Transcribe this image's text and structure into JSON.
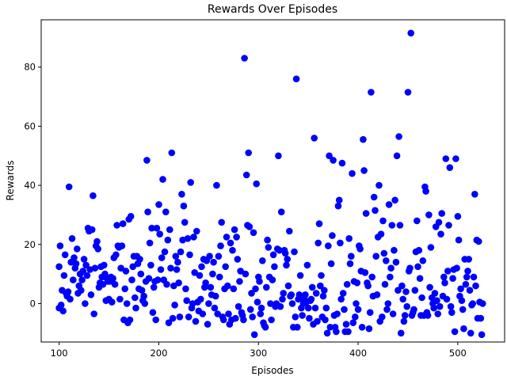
{
  "chart_data": {
    "type": "scatter",
    "title": "Rewards Over Episodes",
    "xlabel": "Episodes",
    "ylabel": "Rewards",
    "xlim": [
      82,
      547
    ],
    "ylim": [
      -13,
      96
    ],
    "xticks": [
      100,
      200,
      300,
      400,
      500
    ],
    "yticks": [
      0,
      20,
      40,
      60,
      80
    ],
    "grid": false,
    "marker_color": "#0000ff",
    "points": [
      [
        100,
        12.5
      ],
      [
        100,
        -1.5
      ],
      [
        101,
        19.5
      ],
      [
        102,
        -0.5
      ],
      [
        103,
        4.5
      ],
      [
        104,
        -2.5
      ],
      [
        105,
        9.5
      ],
      [
        106,
        16.5
      ],
      [
        107,
        3.5
      ],
      [
        108,
        2.5
      ],
      [
        109,
        4
      ],
      [
        110,
        39.5
      ],
      [
        111,
        1.5
      ],
      [
        112,
        14
      ],
      [
        113,
        22
      ],
      [
        114,
        8
      ],
      [
        115,
        15.5
      ],
      [
        116,
        12
      ],
      [
        117,
        13.5
      ],
      [
        118,
        18.5
      ],
      [
        119,
        3.5
      ],
      [
        120,
        6
      ],
      [
        121,
        10
      ],
      [
        122,
        4.5
      ],
      [
        123,
        8
      ],
      [
        124,
        11
      ],
      [
        125,
        15
      ],
      [
        126,
        0
      ],
      [
        127,
        13
      ],
      [
        128,
        9.5
      ],
      [
        129,
        25.5
      ],
      [
        130,
        24.5
      ],
      [
        131,
        11.5
      ],
      [
        132,
        3
      ],
      [
        133,
        25
      ],
      [
        134,
        36.5
      ],
      [
        135,
        -3.5
      ],
      [
        136,
        12
      ],
      [
        137,
        19.5
      ],
      [
        138,
        21
      ],
      [
        139,
        18.5
      ],
      [
        140,
        5.5
      ],
      [
        141,
        7
      ],
      [
        142,
        12.5
      ],
      [
        143,
        9
      ],
      [
        144,
        6.5
      ],
      [
        145,
        13
      ],
      [
        146,
        10
      ],
      [
        147,
        1
      ],
      [
        148,
        8.5
      ],
      [
        149,
        7.5
      ],
      [
        150,
        1.5
      ],
      [
        151,
        7.5
      ],
      [
        152,
        9
      ],
      [
        153,
        0.5
      ],
      [
        154,
        8.5
      ],
      [
        155,
        15.5
      ],
      [
        156,
        6.5
      ],
      [
        157,
        16.5
      ],
      [
        158,
        26.5
      ],
      [
        159,
        19.5
      ],
      [
        160,
        19
      ],
      [
        161,
        1.5
      ],
      [
        162,
        12
      ],
      [
        163,
        19.5
      ],
      [
        164,
        27
      ],
      [
        165,
        -5.5
      ],
      [
        166,
        5
      ],
      [
        167,
        11
      ],
      [
        168,
        0
      ],
      [
        169,
        -6.5
      ],
      [
        170,
        28.5
      ],
      [
        171,
        -5.5
      ],
      [
        172,
        29.5
      ],
      [
        173,
        8
      ],
      [
        174,
        12.5
      ],
      [
        175,
        16
      ],
      [
        176,
        2
      ],
      [
        177,
        -1.5
      ],
      [
        178,
        16
      ],
      [
        179,
        13.5
      ],
      [
        180,
        5
      ],
      [
        181,
        15
      ],
      [
        182,
        10
      ],
      [
        183,
        4.5
      ],
      [
        184,
        1
      ],
      [
        185,
        2.5
      ],
      [
        186,
        0
      ],
      [
        187,
        7.5
      ],
      [
        188,
        48.5
      ],
      [
        189,
        31
      ],
      [
        190,
        8.5
      ],
      [
        191,
        20.5
      ],
      [
        192,
        13
      ],
      [
        193,
        25.5
      ],
      [
        194,
        -3
      ],
      [
        195,
        5.5
      ],
      [
        196,
        7.5
      ],
      [
        197,
        -5.5
      ],
      [
        198,
        25.5
      ],
      [
        199,
        8
      ],
      [
        200,
        33.5
      ],
      [
        201,
        23.5
      ],
      [
        202,
        11.5
      ],
      [
        203,
        15.5
      ],
      [
        204,
        42
      ],
      [
        205,
        8
      ],
      [
        206,
        17.5
      ],
      [
        207,
        31
      ],
      [
        208,
        6.5
      ],
      [
        209,
        21.5
      ],
      [
        210,
        -6.5
      ],
      [
        211,
        25
      ],
      [
        212,
        12
      ],
      [
        213,
        51
      ],
      [
        214,
        -5
      ],
      [
        215,
        6
      ],
      [
        216,
        -0.5
      ],
      [
        217,
        16
      ],
      [
        218,
        11.5
      ],
      [
        219,
        14
      ],
      [
        220,
        7
      ],
      [
        221,
        -4.5
      ],
      [
        222,
        17.5
      ],
      [
        223,
        37
      ],
      [
        224,
        21.5
      ],
      [
        225,
        33
      ],
      [
        226,
        27.5
      ],
      [
        227,
        5
      ],
      [
        228,
        1
      ],
      [
        229,
        22
      ],
      [
        230,
        -4.5
      ],
      [
        231,
        16.5
      ],
      [
        232,
        41
      ],
      [
        233,
        -1.5
      ],
      [
        234,
        0
      ],
      [
        235,
        22.5
      ],
      [
        236,
        10.5
      ],
      [
        237,
        -6
      ],
      [
        238,
        24.5
      ],
      [
        239,
        0.5
      ],
      [
        240,
        -2.5
      ],
      [
        241,
        9.5
      ],
      [
        242,
        1.5
      ],
      [
        243,
        12.5
      ],
      [
        244,
        -3.5
      ],
      [
        245,
        15
      ],
      [
        246,
        5.5
      ],
      [
        247,
        7
      ],
      [
        248,
        14.5
      ],
      [
        249,
        -7
      ],
      [
        250,
        0
      ],
      [
        251,
        16
      ],
      [
        252,
        5.5
      ],
      [
        253,
        3
      ],
      [
        254,
        10
      ],
      [
        255,
        14
      ],
      [
        256,
        -1.5
      ],
      [
        257,
        2.5
      ],
      [
        258,
        40
      ],
      [
        259,
        -3.5
      ],
      [
        260,
        16
      ],
      [
        261,
        9
      ],
      [
        262,
        19.5
      ],
      [
        263,
        27.5
      ],
      [
        264,
        -4.5
      ],
      [
        265,
        -5.5
      ],
      [
        266,
        5
      ],
      [
        267,
        12.5
      ],
      [
        268,
        22.5
      ],
      [
        269,
        6
      ],
      [
        270,
        -3.5
      ],
      [
        271,
        -7
      ],
      [
        272,
        20.5
      ],
      [
        273,
        -5.5
      ],
      [
        274,
        18
      ],
      [
        275,
        5
      ],
      [
        276,
        25
      ],
      [
        277,
        -5
      ],
      [
        278,
        22.5
      ],
      [
        279,
        15
      ],
      [
        280,
        -1
      ],
      [
        281,
        7.5
      ],
      [
        282,
        11
      ],
      [
        283,
        -3
      ],
      [
        284,
        -4
      ],
      [
        285,
        -5.5
      ],
      [
        286,
        83
      ],
      [
        287,
        10
      ],
      [
        288,
        43.5
      ],
      [
        289,
        26.5
      ],
      [
        290,
        51
      ],
      [
        291,
        26
      ],
      [
        292,
        -2
      ],
      [
        293,
        3.5
      ],
      [
        294,
        -4.5
      ],
      [
        295,
        24
      ],
      [
        296,
        -10.5
      ],
      [
        297,
        5
      ],
      [
        298,
        40.5
      ],
      [
        299,
        0.5
      ],
      [
        300,
        9
      ],
      [
        301,
        7.5
      ],
      [
        302,
        -3.5
      ],
      [
        303,
        -1.5
      ],
      [
        304,
        14.5
      ],
      [
        305,
        -6.5
      ],
      [
        306,
        -7.5
      ],
      [
        307,
        -8
      ],
      [
        308,
        5.5
      ],
      [
        309,
        21.5
      ],
      [
        310,
        19
      ],
      [
        311,
        9
      ],
      [
        312,
        0
      ],
      [
        313,
        -5.5
      ],
      [
        314,
        8
      ],
      [
        315,
        16.5
      ],
      [
        316,
        12.5
      ],
      [
        317,
        -1
      ],
      [
        318,
        0
      ],
      [
        319,
        18.5
      ],
      [
        320,
        50
      ],
      [
        321,
        18
      ],
      [
        322,
        -1
      ],
      [
        323,
        31
      ],
      [
        324,
        1.5
      ],
      [
        325,
        3.5
      ],
      [
        326,
        18
      ],
      [
        327,
        17
      ],
      [
        328,
        13
      ],
      [
        329,
        15
      ],
      [
        330,
        6
      ],
      [
        331,
        24.5
      ],
      [
        332,
        2.5
      ],
      [
        333,
        3
      ],
      [
        334,
        0
      ],
      [
        335,
        -8
      ],
      [
        336,
        17.5
      ],
      [
        337,
        -4.5
      ],
      [
        338,
        76
      ],
      [
        339,
        -8
      ],
      [
        340,
        1.5
      ],
      [
        341,
        3
      ],
      [
        342,
        9.5
      ],
      [
        343,
        -1.5
      ],
      [
        344,
        -4
      ],
      [
        345,
        0
      ],
      [
        346,
        1.5
      ],
      [
        347,
        3
      ],
      [
        348,
        0.5
      ],
      [
        349,
        13
      ],
      [
        350,
        -1.5
      ],
      [
        351,
        -5
      ],
      [
        352,
        1
      ],
      [
        353,
        1.5
      ],
      [
        354,
        5.5
      ],
      [
        355,
        -7
      ],
      [
        356,
        56
      ],
      [
        357,
        -1.5
      ],
      [
        358,
        3.5
      ],
      [
        359,
        -6
      ],
      [
        360,
        20.5
      ],
      [
        361,
        27
      ],
      [
        362,
        6
      ],
      [
        363,
        9.5
      ],
      [
        364,
        -4.5
      ],
      [
        365,
        2.5
      ],
      [
        366,
        4.5
      ],
      [
        367,
        -5.5
      ],
      [
        368,
        -1.5
      ],
      [
        369,
        -10
      ],
      [
        370,
        19.5
      ],
      [
        371,
        50
      ],
      [
        372,
        -8
      ],
      [
        373,
        13.5
      ],
      [
        374,
        23
      ],
      [
        375,
        48.5
      ],
      [
        376,
        -4
      ],
      [
        377,
        -8
      ],
      [
        378,
        -9.5
      ],
      [
        379,
        -3.5
      ],
      [
        380,
        33
      ],
      [
        381,
        35
      ],
      [
        382,
        20.5
      ],
      [
        383,
        1.5
      ],
      [
        384,
        47.5
      ],
      [
        385,
        3.5
      ],
      [
        386,
        -2
      ],
      [
        387,
        -9.5
      ],
      [
        388,
        -7
      ],
      [
        389,
        6.5
      ],
      [
        390,
        -9.5
      ],
      [
        391,
        22
      ],
      [
        392,
        13.5
      ],
      [
        393,
        16
      ],
      [
        394,
        44
      ],
      [
        395,
        -6.5
      ],
      [
        396,
        7.5
      ],
      [
        397,
        -4.5
      ],
      [
        398,
        0
      ],
      [
        399,
        7
      ],
      [
        400,
        -2
      ],
      [
        401,
        19.5
      ],
      [
        402,
        18.5
      ],
      [
        403,
        11
      ],
      [
        404,
        -8
      ],
      [
        405,
        55.5
      ],
      [
        406,
        45
      ],
      [
        407,
        10.5
      ],
      [
        408,
        30.5
      ],
      [
        409,
        7
      ],
      [
        410,
        6
      ],
      [
        411,
        -8.5
      ],
      [
        412,
        -3
      ],
      [
        413,
        71.5
      ],
      [
        414,
        9
      ],
      [
        415,
        2.5
      ],
      [
        416,
        36
      ],
      [
        417,
        31.5
      ],
      [
        418,
        16
      ],
      [
        419,
        3
      ],
      [
        420,
        22.5
      ],
      [
        421,
        40
      ],
      [
        422,
        -6
      ],
      [
        423,
        23.5
      ],
      [
        424,
        -4.5
      ],
      [
        425,
        28
      ],
      [
        426,
        17
      ],
      [
        427,
        6.5
      ],
      [
        428,
        14.5
      ],
      [
        429,
        -2
      ],
      [
        430,
        0
      ],
      [
        431,
        33.5
      ],
      [
        432,
        9
      ],
      [
        433,
        12
      ],
      [
        434,
        26.5
      ],
      [
        435,
        -3.5
      ],
      [
        436,
        18
      ],
      [
        437,
        35
      ],
      [
        438,
        14
      ],
      [
        439,
        50
      ],
      [
        440,
        4.5
      ],
      [
        441,
        56.5
      ],
      [
        442,
        26.5
      ],
      [
        443,
        -10
      ],
      [
        444,
        6
      ],
      [
        445,
        1.5
      ],
      [
        446,
        -6
      ],
      [
        447,
        -4
      ],
      [
        448,
        4
      ],
      [
        449,
        -1
      ],
      [
        450,
        71.5
      ],
      [
        451,
        11
      ],
      [
        452,
        12
      ],
      [
        453,
        91.5
      ],
      [
        454,
        -4
      ],
      [
        455,
        -3
      ],
      [
        456,
        -2
      ],
      [
        457,
        4.5
      ],
      [
        458,
        17.5
      ],
      [
        459,
        28
      ],
      [
        460,
        12.5
      ],
      [
        461,
        18
      ],
      [
        462,
        8.5
      ],
      [
        463,
        -4
      ],
      [
        464,
        2
      ],
      [
        465,
        14.5
      ],
      [
        466,
        -4
      ],
      [
        467,
        39.5
      ],
      [
        468,
        38
      ],
      [
        469,
        -3
      ],
      [
        470,
        -4
      ],
      [
        471,
        30
      ],
      [
        472,
        5.5
      ],
      [
        473,
        19
      ],
      [
        474,
        2
      ],
      [
        475,
        0
      ],
      [
        476,
        -1.5
      ],
      [
        477,
        3.5
      ],
      [
        478,
        26
      ],
      [
        479,
        1
      ],
      [
        480,
        -3.5
      ],
      [
        481,
        27.5
      ],
      [
        482,
        -1
      ],
      [
        483,
        23.5
      ],
      [
        484,
        30.5
      ],
      [
        485,
        2.5
      ],
      [
        486,
        9
      ],
      [
        487,
        7
      ],
      [
        488,
        49
      ],
      [
        489,
        1.5
      ],
      [
        490,
        11
      ],
      [
        491,
        26.5
      ],
      [
        492,
        46
      ],
      [
        493,
        -1
      ],
      [
        494,
        -3
      ],
      [
        495,
        8.5
      ],
      [
        496,
        11.5
      ],
      [
        497,
        -9.5
      ],
      [
        498,
        49
      ],
      [
        499,
        12
      ],
      [
        500,
        29.5
      ],
      [
        501,
        21.5
      ],
      [
        502,
        2.5
      ],
      [
        503,
        5
      ],
      [
        504,
        1
      ],
      [
        505,
        -2
      ],
      [
        506,
        -8.5
      ],
      [
        507,
        15
      ],
      [
        508,
        6.5
      ],
      [
        509,
        9
      ],
      [
        510,
        11
      ],
      [
        511,
        15
      ],
      [
        512,
        4.5
      ],
      [
        513,
        -10
      ],
      [
        514,
        -0.5
      ],
      [
        515,
        0
      ],
      [
        516,
        9
      ],
      [
        517,
        37
      ],
      [
        518,
        6
      ],
      [
        519,
        21.5
      ],
      [
        520,
        -5
      ],
      [
        521,
        21
      ],
      [
        522,
        0.5
      ],
      [
        523,
        -5
      ],
      [
        524,
        -10.5
      ],
      [
        525,
        0
      ]
    ]
  }
}
